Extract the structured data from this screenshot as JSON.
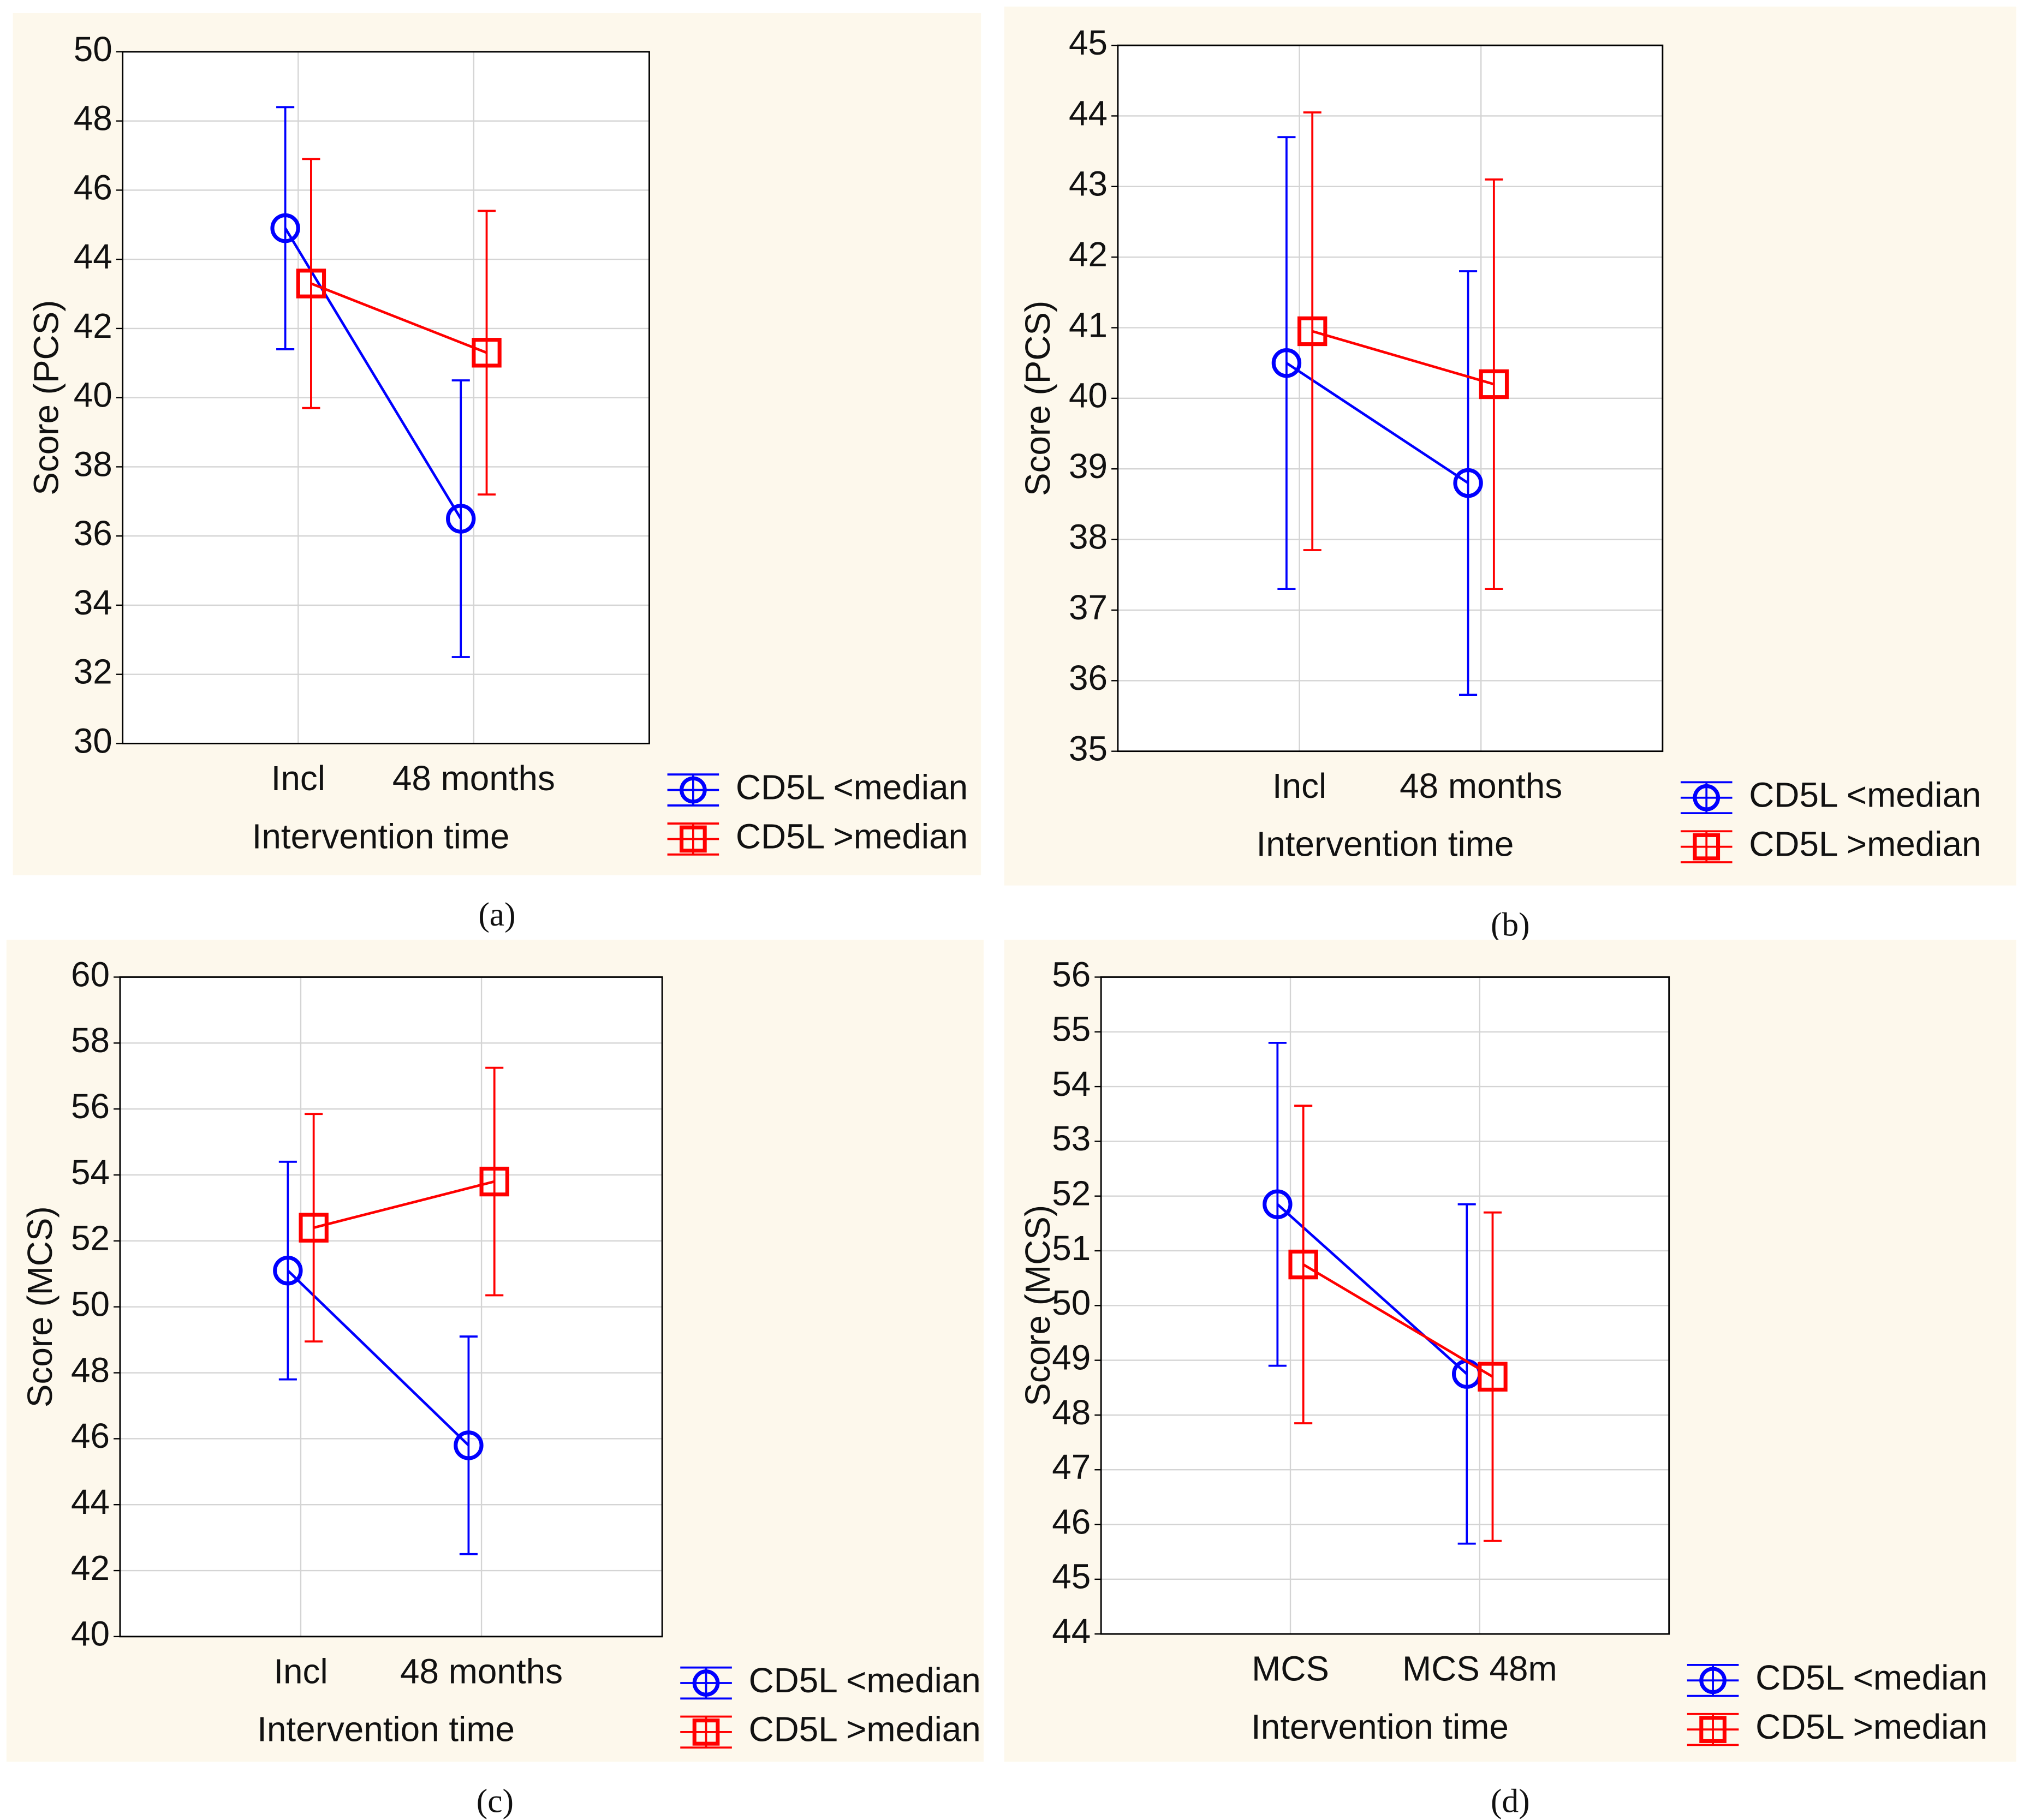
{
  "chart_data": [
    {
      "type": "line",
      "caption": "(a)",
      "y_label": "Score (PCS)",
      "x_label": "Intervention time",
      "categories": [
        "Incl",
        "48 months"
      ],
      "ylim": [
        30,
        50
      ],
      "yticks": [
        30,
        32,
        34,
        36,
        38,
        40,
        42,
        44,
        46,
        48,
        50
      ],
      "grid": true,
      "series": [
        {
          "name": "CD5L <median",
          "color": "#0000ff",
          "marker": "circle",
          "values": [
            44.9,
            36.5
          ],
          "errors": [
            3.5,
            4.0
          ]
        },
        {
          "name": "CD5L >median",
          "color": "#ff0000",
          "marker": "square",
          "values": [
            43.3,
            41.3
          ],
          "errors": [
            3.6,
            4.1
          ]
        }
      ]
    },
    {
      "type": "line",
      "caption": "(b)",
      "y_label": "Score (PCS)",
      "x_label": "Intervention time",
      "categories": [
        "Incl",
        "48 months"
      ],
      "ylim": [
        35,
        45
      ],
      "yticks": [
        35,
        36,
        37,
        38,
        39,
        40,
        41,
        42,
        43,
        44,
        45
      ],
      "grid": true,
      "series": [
        {
          "name": "CD5L <median",
          "color": "#0000ff",
          "marker": "circle",
          "values": [
            40.5,
            38.8
          ],
          "errors": [
            3.2,
            3.0
          ]
        },
        {
          "name": "CD5L >median",
          "color": "#ff0000",
          "marker": "square",
          "values": [
            40.95,
            40.2
          ],
          "errors": [
            3.1,
            2.9
          ]
        }
      ]
    },
    {
      "type": "line",
      "caption": "(c)",
      "y_label": "Score (MCS)",
      "x_label": "Intervention time",
      "categories": [
        "Incl",
        "48 months"
      ],
      "ylim": [
        40,
        60
      ],
      "yticks": [
        40,
        42,
        44,
        46,
        48,
        50,
        52,
        54,
        56,
        58,
        60
      ],
      "grid": true,
      "series": [
        {
          "name": "CD5L <median",
          "color": "#0000ff",
          "marker": "circle",
          "values": [
            51.1,
            45.8
          ],
          "errors": [
            3.3,
            3.3
          ]
        },
        {
          "name": "CD5L >median",
          "color": "#ff0000",
          "marker": "square",
          "values": [
            52.4,
            53.8
          ],
          "errors": [
            3.45,
            3.45
          ]
        }
      ]
    },
    {
      "type": "line",
      "caption": "(d)",
      "y_label": "Score (MCS)",
      "x_label": "Intervention time",
      "categories": [
        "MCS",
        "MCS 48m"
      ],
      "ylim": [
        44,
        56
      ],
      "yticks": [
        44,
        45,
        46,
        47,
        48,
        49,
        50,
        51,
        52,
        53,
        54,
        55,
        56
      ],
      "grid": true,
      "series": [
        {
          "name": "CD5L <median",
          "color": "#0000ff",
          "marker": "circle",
          "values": [
            51.85,
            48.75
          ],
          "errors": [
            2.95,
            3.1
          ]
        },
        {
          "name": "CD5L >median",
          "color": "#ff0000",
          "marker": "square",
          "values": [
            50.75,
            48.7
          ],
          "errors": [
            2.9,
            3.0
          ]
        }
      ]
    }
  ]
}
